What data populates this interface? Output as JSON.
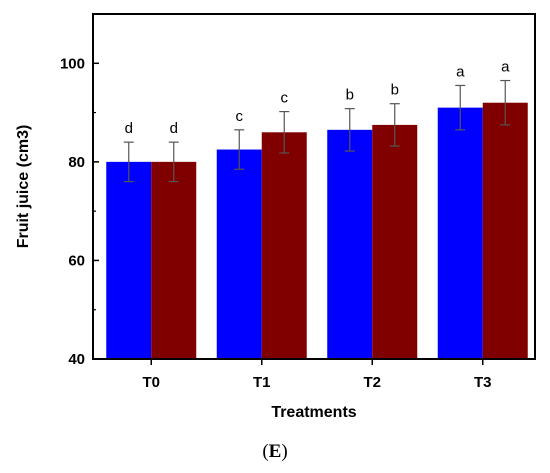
{
  "chart_data": {
    "type": "bar",
    "title": "",
    "xlabel": "Treatments",
    "ylabel": "Fruit juice (cm3)",
    "categories": [
      "T0",
      "T1",
      "T2",
      "T3"
    ],
    "ylim": [
      40,
      110
    ],
    "yticks": [
      40,
      60,
      80,
      100
    ],
    "grid": false,
    "legend": "none",
    "series": [
      {
        "color": "#0000ff",
        "values": [
          80.0,
          82.5,
          86.5,
          91.0
        ],
        "errors": [
          4.0,
          4.0,
          4.3,
          4.5
        ],
        "letters": [
          "d",
          "c",
          "b",
          "a"
        ]
      },
      {
        "color": "#800000",
        "values": [
          80.0,
          86.0,
          87.5,
          92.0
        ],
        "errors": [
          4.0,
          4.2,
          4.3,
          4.5
        ],
        "letters": [
          "d",
          "c",
          "b",
          "a"
        ]
      }
    ]
  },
  "panel_label": {
    "open": "(",
    "letter": "E",
    "close": ")"
  }
}
